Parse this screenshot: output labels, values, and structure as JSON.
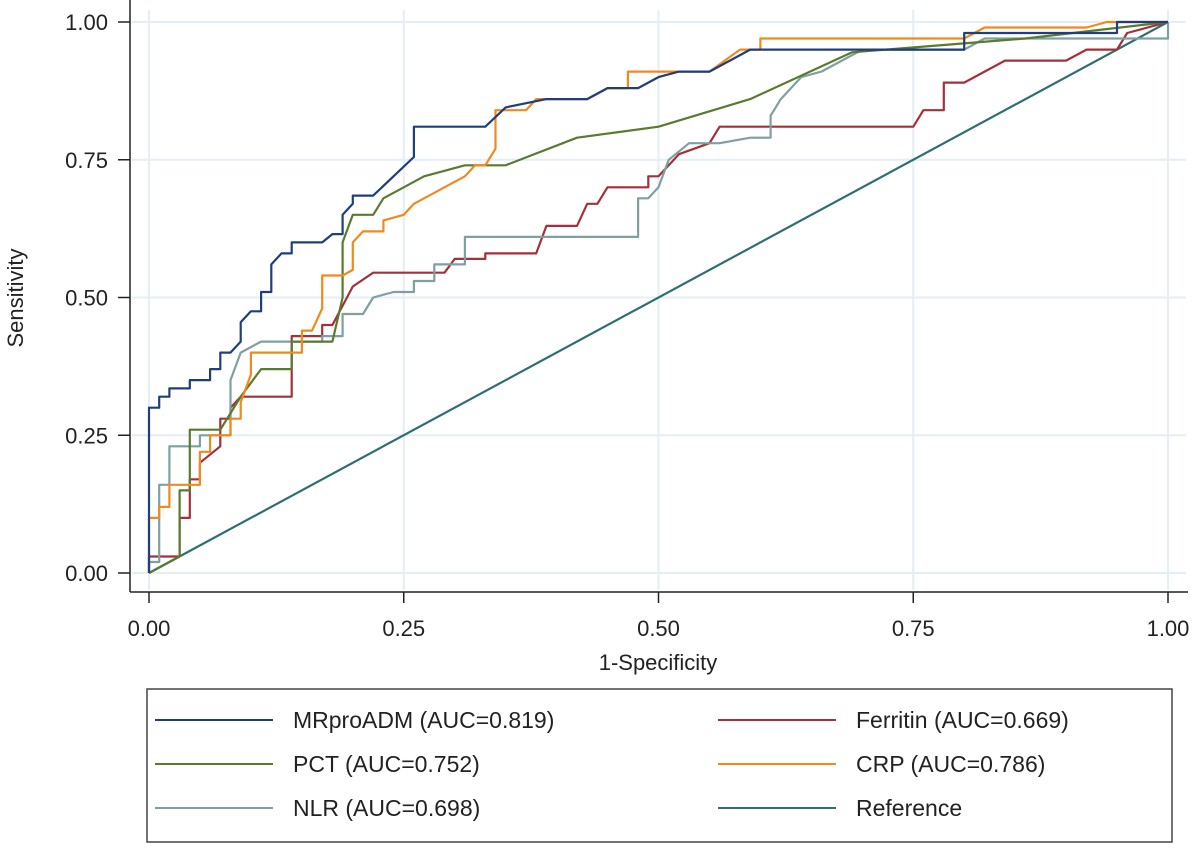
{
  "chart_data": {
    "type": "line",
    "title": "",
    "xlabel": "1-Specificity",
    "ylabel": "Sensitivity",
    "xlim": [
      0,
      1
    ],
    "ylim": [
      0,
      1
    ],
    "grid": true,
    "legend_placement": "bottom",
    "xticks": [
      "0.00",
      "0.25",
      "0.50",
      "0.75",
      "1.00"
    ],
    "yticks": [
      "0.00",
      "0.25",
      "0.50",
      "0.75",
      "1.00"
    ],
    "xtick_values": [
      0,
      0.25,
      0.5,
      0.75,
      1
    ],
    "ytick_values": [
      0,
      0.25,
      0.5,
      0.75,
      1
    ],
    "series": [
      {
        "name": "MRproADM (AUC=0.819)",
        "color": "#1f3f7a",
        "points": [
          [
            0,
            0
          ],
          [
            0,
            0.3
          ],
          [
            0.01,
            0.3
          ],
          [
            0.01,
            0.32
          ],
          [
            0.02,
            0.32
          ],
          [
            0.02,
            0.335
          ],
          [
            0.04,
            0.335
          ],
          [
            0.04,
            0.35
          ],
          [
            0.06,
            0.35
          ],
          [
            0.06,
            0.37
          ],
          [
            0.07,
            0.37
          ],
          [
            0.07,
            0.4
          ],
          [
            0.08,
            0.4
          ],
          [
            0.09,
            0.42
          ],
          [
            0.09,
            0.455
          ],
          [
            0.1,
            0.475
          ],
          [
            0.11,
            0.475
          ],
          [
            0.11,
            0.51
          ],
          [
            0.12,
            0.51
          ],
          [
            0.12,
            0.56
          ],
          [
            0.13,
            0.58
          ],
          [
            0.14,
            0.58
          ],
          [
            0.14,
            0.6
          ],
          [
            0.17,
            0.6
          ],
          [
            0.18,
            0.615
          ],
          [
            0.19,
            0.615
          ],
          [
            0.19,
            0.65
          ],
          [
            0.2,
            0.67
          ],
          [
            0.2,
            0.685
          ],
          [
            0.22,
            0.685
          ],
          [
            0.26,
            0.755
          ],
          [
            0.26,
            0.81
          ],
          [
            0.33,
            0.81
          ],
          [
            0.35,
            0.845
          ],
          [
            0.39,
            0.86
          ],
          [
            0.43,
            0.86
          ],
          [
            0.45,
            0.88
          ],
          [
            0.48,
            0.88
          ],
          [
            0.5,
            0.9
          ],
          [
            0.52,
            0.91
          ],
          [
            0.55,
            0.91
          ],
          [
            0.59,
            0.95
          ],
          [
            0.8,
            0.95
          ],
          [
            0.8,
            0.98
          ],
          [
            0.95,
            0.98
          ],
          [
            0.95,
            1.0
          ],
          [
            1,
            1
          ]
        ]
      },
      {
        "name": "PCT (AUC=0.752)",
        "color": "#5a7a2e",
        "points": [
          [
            0,
            0
          ],
          [
            0.02,
            0.02
          ],
          [
            0.03,
            0.03
          ],
          [
            0.03,
            0.15
          ],
          [
            0.04,
            0.15
          ],
          [
            0.04,
            0.26
          ],
          [
            0.07,
            0.26
          ],
          [
            0.09,
            0.32
          ],
          [
            0.11,
            0.37
          ],
          [
            0.14,
            0.37
          ],
          [
            0.14,
            0.42
          ],
          [
            0.18,
            0.42
          ],
          [
            0.19,
            0.5
          ],
          [
            0.19,
            0.6
          ],
          [
            0.2,
            0.65
          ],
          [
            0.22,
            0.65
          ],
          [
            0.23,
            0.68
          ],
          [
            0.27,
            0.72
          ],
          [
            0.31,
            0.74
          ],
          [
            0.35,
            0.74
          ],
          [
            0.42,
            0.79
          ],
          [
            0.5,
            0.81
          ],
          [
            0.59,
            0.86
          ],
          [
            0.69,
            0.945
          ],
          [
            0.86,
            0.97
          ],
          [
            1,
            1
          ]
        ]
      },
      {
        "name": "NLR (AUC=0.698)",
        "color": "#7fa0a0",
        "points": [
          [
            0,
            0
          ],
          [
            0,
            0.02
          ],
          [
            0.01,
            0.02
          ],
          [
            0.01,
            0.16
          ],
          [
            0.02,
            0.16
          ],
          [
            0.02,
            0.23
          ],
          [
            0.05,
            0.23
          ],
          [
            0.05,
            0.25
          ],
          [
            0.08,
            0.25
          ],
          [
            0.08,
            0.35
          ],
          [
            0.09,
            0.4
          ],
          [
            0.11,
            0.42
          ],
          [
            0.17,
            0.42
          ],
          [
            0.17,
            0.43
          ],
          [
            0.19,
            0.43
          ],
          [
            0.19,
            0.47
          ],
          [
            0.21,
            0.47
          ],
          [
            0.22,
            0.5
          ],
          [
            0.24,
            0.51
          ],
          [
            0.26,
            0.51
          ],
          [
            0.26,
            0.53
          ],
          [
            0.28,
            0.53
          ],
          [
            0.28,
            0.56
          ],
          [
            0.31,
            0.56
          ],
          [
            0.31,
            0.61
          ],
          [
            0.48,
            0.61
          ],
          [
            0.48,
            0.68
          ],
          [
            0.49,
            0.68
          ],
          [
            0.5,
            0.7
          ],
          [
            0.51,
            0.75
          ],
          [
            0.53,
            0.78
          ],
          [
            0.56,
            0.78
          ],
          [
            0.59,
            0.79
          ],
          [
            0.61,
            0.79
          ],
          [
            0.61,
            0.83
          ],
          [
            0.62,
            0.86
          ],
          [
            0.63,
            0.88
          ],
          [
            0.64,
            0.9
          ],
          [
            0.66,
            0.91
          ],
          [
            0.68,
            0.93
          ],
          [
            0.7,
            0.95
          ],
          [
            0.8,
            0.95
          ],
          [
            0.82,
            0.97
          ],
          [
            1.0,
            0.97
          ],
          [
            1.0,
            1.0
          ]
        ]
      },
      {
        "name": "Ferritin (AUC=0.669)",
        "color": "#a3303a",
        "points": [
          [
            0,
            0
          ],
          [
            0,
            0.03
          ],
          [
            0.03,
            0.03
          ],
          [
            0.03,
            0.1
          ],
          [
            0.04,
            0.1
          ],
          [
            0.04,
            0.17
          ],
          [
            0.05,
            0.17
          ],
          [
            0.05,
            0.2
          ],
          [
            0.07,
            0.23
          ],
          [
            0.07,
            0.28
          ],
          [
            0.08,
            0.28
          ],
          [
            0.08,
            0.3
          ],
          [
            0.09,
            0.32
          ],
          [
            0.14,
            0.32
          ],
          [
            0.14,
            0.43
          ],
          [
            0.17,
            0.43
          ],
          [
            0.17,
            0.45
          ],
          [
            0.18,
            0.45
          ],
          [
            0.2,
            0.52
          ],
          [
            0.22,
            0.545
          ],
          [
            0.29,
            0.545
          ],
          [
            0.3,
            0.57
          ],
          [
            0.33,
            0.57
          ],
          [
            0.33,
            0.58
          ],
          [
            0.38,
            0.58
          ],
          [
            0.39,
            0.63
          ],
          [
            0.42,
            0.63
          ],
          [
            0.43,
            0.67
          ],
          [
            0.44,
            0.67
          ],
          [
            0.45,
            0.7
          ],
          [
            0.49,
            0.7
          ],
          [
            0.49,
            0.72
          ],
          [
            0.5,
            0.72
          ],
          [
            0.52,
            0.76
          ],
          [
            0.55,
            0.78
          ],
          [
            0.56,
            0.81
          ],
          [
            0.75,
            0.81
          ],
          [
            0.76,
            0.84
          ],
          [
            0.78,
            0.84
          ],
          [
            0.78,
            0.89
          ],
          [
            0.8,
            0.89
          ],
          [
            0.82,
            0.91
          ],
          [
            0.84,
            0.93
          ],
          [
            0.9,
            0.93
          ],
          [
            0.92,
            0.95
          ],
          [
            0.95,
            0.95
          ],
          [
            0.96,
            0.98
          ],
          [
            1,
            1
          ]
        ]
      },
      {
        "name": "CRP (AUC=0.786)",
        "color": "#f08a1c",
        "points": [
          [
            0,
            0
          ],
          [
            0,
            0.1
          ],
          [
            0.01,
            0.1
          ],
          [
            0.01,
            0.12
          ],
          [
            0.02,
            0.12
          ],
          [
            0.02,
            0.16
          ],
          [
            0.05,
            0.16
          ],
          [
            0.05,
            0.22
          ],
          [
            0.06,
            0.22
          ],
          [
            0.06,
            0.25
          ],
          [
            0.08,
            0.25
          ],
          [
            0.08,
            0.28
          ],
          [
            0.09,
            0.28
          ],
          [
            0.09,
            0.31
          ],
          [
            0.1,
            0.36
          ],
          [
            0.1,
            0.4
          ],
          [
            0.15,
            0.4
          ],
          [
            0.15,
            0.44
          ],
          [
            0.16,
            0.44
          ],
          [
            0.17,
            0.48
          ],
          [
            0.17,
            0.54
          ],
          [
            0.19,
            0.54
          ],
          [
            0.2,
            0.55
          ],
          [
            0.2,
            0.6
          ],
          [
            0.21,
            0.62
          ],
          [
            0.23,
            0.62
          ],
          [
            0.23,
            0.64
          ],
          [
            0.25,
            0.65
          ],
          [
            0.26,
            0.67
          ],
          [
            0.28,
            0.69
          ],
          [
            0.3,
            0.71
          ],
          [
            0.31,
            0.72
          ],
          [
            0.32,
            0.74
          ],
          [
            0.33,
            0.74
          ],
          [
            0.34,
            0.77
          ],
          [
            0.34,
            0.84
          ],
          [
            0.37,
            0.84
          ],
          [
            0.38,
            0.86
          ],
          [
            0.43,
            0.86
          ],
          [
            0.45,
            0.88
          ],
          [
            0.47,
            0.88
          ],
          [
            0.47,
            0.91
          ],
          [
            0.55,
            0.91
          ],
          [
            0.58,
            0.95
          ],
          [
            0.6,
            0.95
          ],
          [
            0.6,
            0.97
          ],
          [
            0.8,
            0.97
          ],
          [
            0.82,
            0.99
          ],
          [
            0.92,
            0.99
          ],
          [
            0.94,
            1.0
          ],
          [
            1,
            1
          ]
        ]
      },
      {
        "name": "Reference",
        "color": "#2f6f70",
        "points": [
          [
            0,
            0
          ],
          [
            1,
            1
          ]
        ]
      }
    ]
  }
}
